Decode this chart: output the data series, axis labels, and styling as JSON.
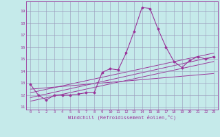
{
  "xlabel": "Windchill (Refroidissement éolien,°C)",
  "xlim": [
    -0.5,
    23.5
  ],
  "ylim": [
    10.8,
    19.8
  ],
  "yticks": [
    11,
    12,
    13,
    14,
    15,
    16,
    17,
    18,
    19
  ],
  "xticks": [
    0,
    1,
    2,
    3,
    4,
    5,
    6,
    7,
    8,
    9,
    10,
    11,
    12,
    13,
    14,
    15,
    16,
    17,
    18,
    19,
    20,
    21,
    22,
    23
  ],
  "background_color": "#c5eaea",
  "grid_color": "#9999bb",
  "line_color": "#993399",
  "series": [
    [
      0,
      12.9
    ],
    [
      1,
      12.0
    ],
    [
      2,
      11.6
    ],
    [
      3,
      12.0
    ],
    [
      4,
      12.0
    ],
    [
      5,
      12.0
    ],
    [
      6,
      12.1
    ],
    [
      7,
      12.2
    ],
    [
      8,
      12.2
    ],
    [
      9,
      13.9
    ],
    [
      10,
      14.2
    ],
    [
      11,
      14.1
    ],
    [
      12,
      15.5
    ],
    [
      13,
      17.3
    ],
    [
      14,
      19.3
    ],
    [
      15,
      19.2
    ],
    [
      16,
      17.5
    ],
    [
      17,
      16.0
    ],
    [
      18,
      14.8
    ],
    [
      19,
      14.3
    ],
    [
      20,
      14.9
    ],
    [
      21,
      15.2
    ],
    [
      22,
      15.0
    ],
    [
      23,
      15.2
    ]
  ],
  "trend_lines": [
    {
      "x": [
        0,
        23
      ],
      "y": [
        12.5,
        13.8
      ]
    },
    {
      "x": [
        0,
        23
      ],
      "y": [
        11.8,
        15.2
      ]
    },
    {
      "x": [
        0,
        23
      ],
      "y": [
        11.5,
        14.8
      ]
    },
    {
      "x": [
        0,
        23
      ],
      "y": [
        12.2,
        15.5
      ]
    }
  ]
}
